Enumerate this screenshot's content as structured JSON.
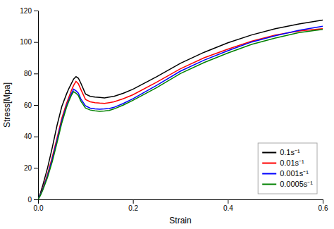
{
  "chart_data": {
    "type": "line",
    "xlabel": "Strain",
    "ylabel": "Stress[Mpa]",
    "x": [
      0.0,
      0.005,
      0.01,
      0.02,
      0.03,
      0.04,
      0.05,
      0.06,
      0.065,
      0.07,
      0.075,
      0.08,
      0.085,
      0.09,
      0.1,
      0.11,
      0.12,
      0.13,
      0.14,
      0.15,
      0.16,
      0.18,
      0.2,
      0.25,
      0.3,
      0.35,
      0.4,
      0.45,
      0.5,
      0.55,
      0.6
    ],
    "series": [
      {
        "name": "0.1s⁻¹",
        "color": "black",
        "values": [
          0.0,
          4.0,
          9.0,
          20.0,
          33.0,
          47.0,
          59.0,
          67.0,
          70.5,
          73.5,
          76.5,
          78.0,
          77.0,
          74.0,
          67.0,
          65.5,
          65.0,
          64.8,
          64.5,
          65.0,
          65.5,
          67.5,
          70.0,
          78.0,
          86.5,
          93.5,
          99.5,
          104.5,
          108.5,
          111.5,
          114.0
        ]
      },
      {
        "name": "0.01s⁻¹",
        "color": "red",
        "values": [
          0.0,
          3.0,
          7.0,
          16.0,
          27.0,
          39.0,
          51.5,
          61.0,
          65.0,
          69.0,
          72.5,
          75.0,
          73.5,
          70.0,
          63.5,
          62.0,
          61.5,
          61.2,
          61.0,
          61.5,
          62.0,
          64.0,
          66.5,
          74.5,
          83.0,
          90.0,
          95.5,
          100.5,
          104.5,
          107.0,
          108.5
        ]
      },
      {
        "name": "0.001s⁻¹",
        "color": "blue",
        "values": [
          0.0,
          3.0,
          6.5,
          15.0,
          25.5,
          37.5,
          50.0,
          59.5,
          63.5,
          67.0,
          70.0,
          69.0,
          67.5,
          64.0,
          59.5,
          58.0,
          57.5,
          57.3,
          57.5,
          57.8,
          58.5,
          61.0,
          64.0,
          72.5,
          81.5,
          88.5,
          94.5,
          100.0,
          104.0,
          107.5,
          110.0
        ]
      },
      {
        "name": "0.0005s⁻¹",
        "color": "green",
        "values": [
          0.0,
          2.5,
          6.0,
          14.0,
          24.0,
          36.0,
          48.5,
          58.5,
          62.5,
          66.0,
          68.5,
          67.5,
          66.0,
          62.5,
          58.0,
          56.8,
          56.3,
          56.0,
          56.2,
          56.5,
          57.5,
          60.0,
          63.0,
          71.0,
          80.0,
          87.0,
          93.0,
          98.5,
          102.5,
          106.0,
          108.0
        ]
      }
    ],
    "xlim": [
      0.0,
      0.6
    ],
    "ylim": [
      0,
      120
    ],
    "xticks": [
      {
        "value": 0.0,
        "label": "0.0"
      },
      0.2,
      0.4,
      0.6
    ],
    "yticks": [
      0,
      20,
      40,
      60,
      80,
      100,
      120
    ],
    "grid": false,
    "legend": "lower right"
  }
}
